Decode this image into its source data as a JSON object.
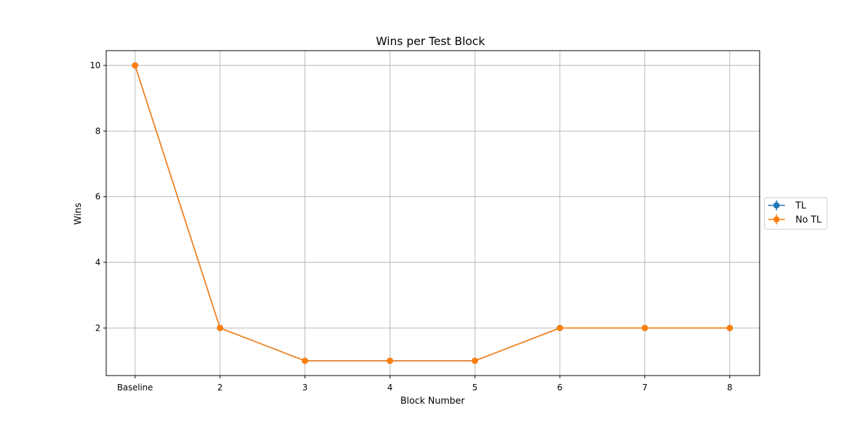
{
  "chart_data": {
    "type": "line",
    "title": "Wins per Test Block",
    "xlabel": "Block Number",
    "ylabel": "Wins",
    "categories": [
      "Baseline",
      "2",
      "3",
      "4",
      "5",
      "6",
      "7",
      "8"
    ],
    "yticks": [
      2,
      4,
      6,
      8,
      10
    ],
    "ylim": [
      0.55,
      10.45
    ],
    "grid": true,
    "legend_position": "right",
    "series": [
      {
        "name": "TL",
        "color": "#1f77b4",
        "marker": "circle",
        "values": [
          10,
          2,
          1,
          1,
          1,
          2,
          2,
          2
        ]
      },
      {
        "name": "No TL",
        "color": "#ff7f0e",
        "marker": "circle",
        "values": [
          10,
          2,
          1,
          1,
          1,
          2,
          2,
          2
        ]
      }
    ]
  }
}
